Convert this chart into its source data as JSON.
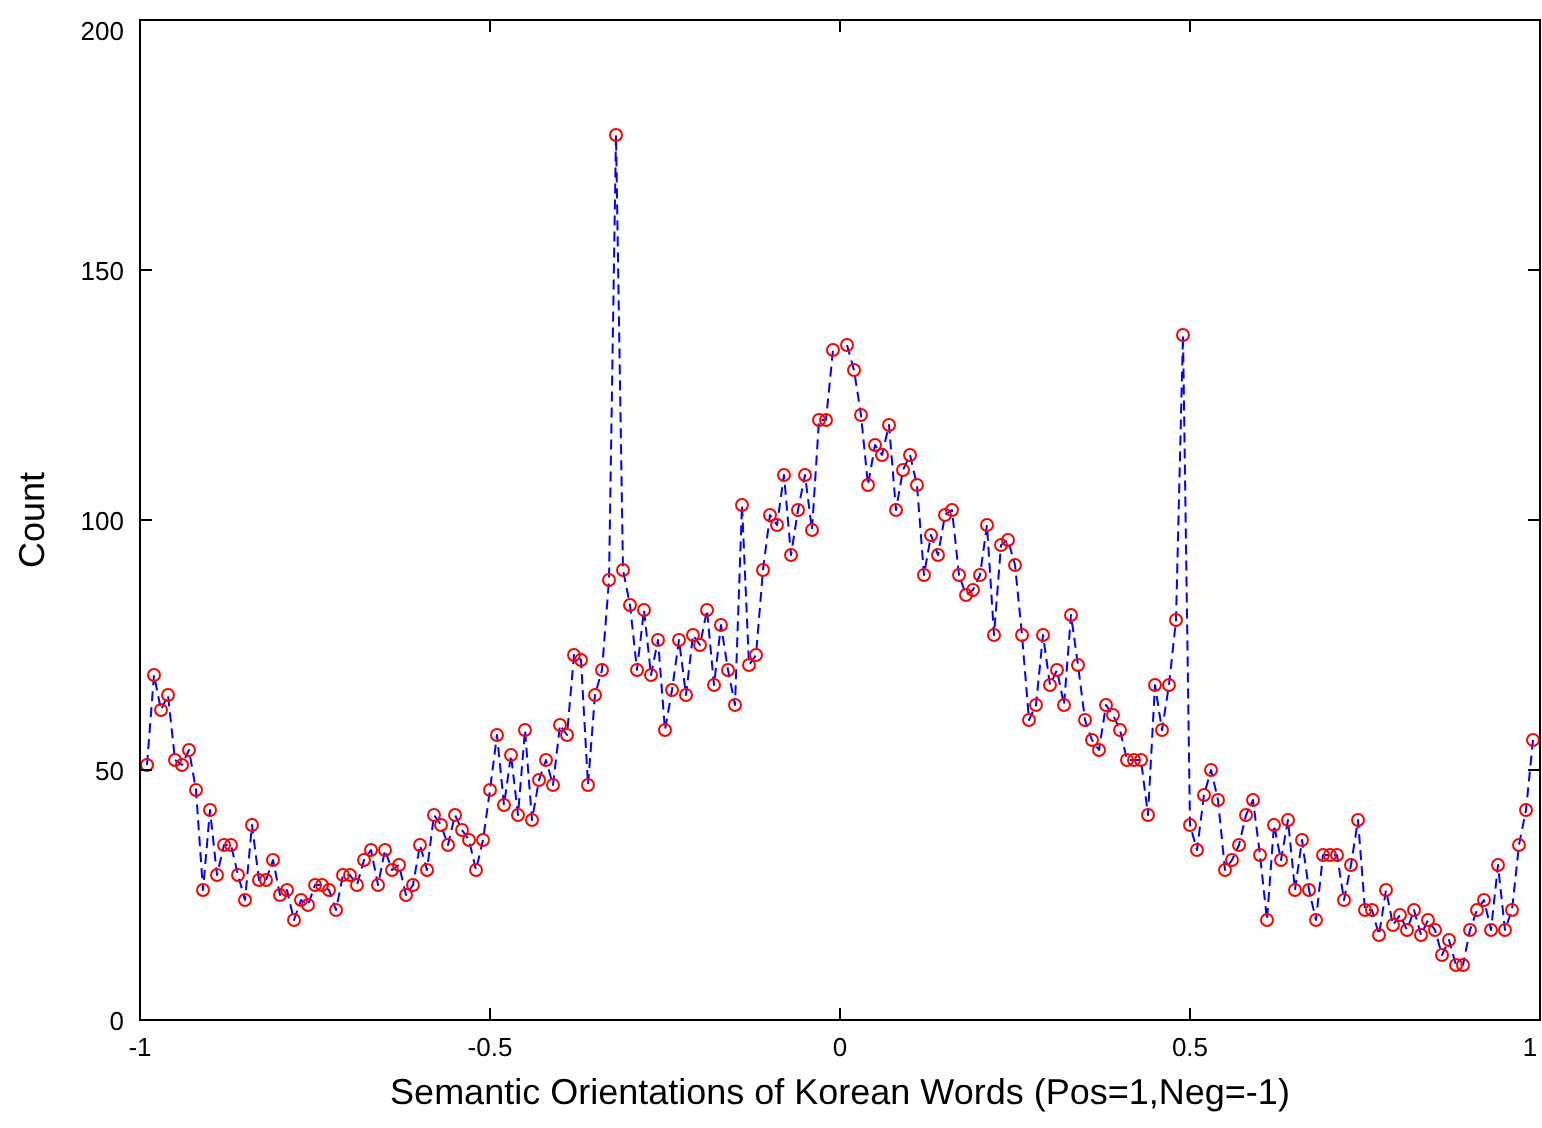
{
  "chart_data": {
    "type": "line",
    "xlabel": "Semantic Orientations of Korean Words (Pos=1,Neg=-1)",
    "ylabel": "Count",
    "xlim": [
      -1,
      1
    ],
    "xticks": [
      -1,
      {
        "value": -0.5,
        "label": "-0.5"
      },
      0,
      {
        "value": 0.5,
        "label": "0.5"
      },
      1
    ],
    "ylim": [
      0,
      200
    ],
    "yticks": [
      0,
      50,
      100,
      150,
      200
    ],
    "grid": false,
    "x": [
      -0.99,
      -0.98,
      -0.97,
      -0.96,
      -0.95,
      -0.94,
      -0.93,
      -0.92,
      -0.91,
      -0.9,
      -0.89,
      -0.88,
      -0.87,
      -0.86,
      -0.85,
      -0.84,
      -0.83,
      -0.82,
      -0.81,
      -0.8,
      -0.79,
      -0.78,
      -0.77,
      -0.76,
      -0.75,
      -0.74,
      -0.73,
      -0.72,
      -0.71,
      -0.7,
      -0.69,
      -0.68,
      -0.67,
      -0.66,
      -0.65,
      -0.64,
      -0.63,
      -0.62,
      -0.61,
      -0.6,
      -0.59,
      -0.58,
      -0.57,
      -0.56,
      -0.55,
      -0.54,
      -0.53,
      -0.52,
      -0.51,
      -0.5,
      -0.49,
      -0.48,
      -0.47,
      -0.46,
      -0.45,
      -0.44,
      -0.43,
      -0.42,
      -0.41,
      -0.4,
      -0.39,
      -0.38,
      -0.37,
      -0.36,
      -0.35,
      -0.34,
      -0.33,
      -0.32,
      -0.31,
      -0.3,
      -0.29,
      -0.28,
      -0.27,
      -0.26,
      -0.25,
      -0.24,
      -0.23,
      -0.22,
      -0.21,
      -0.2,
      -0.19,
      -0.18,
      -0.17,
      -0.16,
      -0.15,
      -0.14,
      -0.13,
      -0.12,
      -0.11,
      -0.1,
      -0.09,
      -0.08,
      -0.07,
      -0.06,
      -0.05,
      -0.04,
      -0.03,
      -0.02,
      -0.01,
      0,
      0.01,
      0.02,
      0.03,
      0.04,
      0.05,
      0.06,
      0.07,
      0.08,
      0.09,
      0.1,
      0.11,
      0.12,
      0.13,
      0.14,
      0.15,
      0.16,
      0.17,
      0.18,
      0.19,
      0.2,
      0.21,
      0.22,
      0.23,
      0.24,
      0.25,
      0.26,
      0.27,
      0.28,
      0.29,
      0.3,
      0.31,
      0.32,
      0.33,
      0.34,
      0.35,
      0.36,
      0.37,
      0.38,
      0.39,
      0.4,
      0.41,
      0.42,
      0.43,
      0.44,
      0.45,
      0.46,
      0.47,
      0.48,
      0.49,
      0.5,
      0.51,
      0.52,
      0.53,
      0.54,
      0.55,
      0.56,
      0.57,
      0.58,
      0.59,
      0.6,
      0.61,
      0.62,
      0.63,
      0.64,
      0.65,
      0.66,
      0.67,
      0.68,
      0.69,
      0.7,
      0.71,
      0.72,
      0.73,
      0.74,
      0.75,
      0.76,
      0.77,
      0.78,
      0.79,
      0.8,
      0.81,
      0.82,
      0.83,
      0.84,
      0.85,
      0.86,
      0.87,
      0.88,
      0.89,
      0.9,
      0.91,
      0.92,
      0.93,
      0.94,
      0.95,
      0.96,
      0.97,
      0.98,
      0.99
    ],
    "series": [
      {
        "color": "#0000ff",
        "line_style": "dashed",
        "marker": "none",
        "values": [
          51,
          69,
          62,
          65,
          52,
          51,
          54,
          46,
          26,
          42,
          29,
          35,
          35,
          29,
          24,
          39,
          28,
          28,
          32,
          25,
          26,
          20,
          24,
          23,
          27,
          27,
          26,
          22,
          29,
          29,
          27,
          32,
          34,
          27,
          34,
          30,
          31,
          25,
          27,
          35,
          30,
          41,
          39,
          35,
          41,
          38,
          36,
          30,
          36,
          46,
          57,
          43,
          53,
          41,
          58,
          40,
          48,
          52,
          47,
          59,
          57,
          73,
          72,
          47,
          65,
          70,
          88,
          177,
          90,
          83,
          70,
          82,
          69,
          76,
          58,
          66,
          76,
          65,
          77,
          75,
          82,
          67,
          79,
          70,
          63,
          103,
          71,
          73,
          90,
          101,
          99,
          109,
          93,
          102,
          109,
          98,
          120,
          120,
          134,
          null,
          135,
          130,
          121,
          107,
          115,
          113,
          119,
          102,
          110,
          113,
          107,
          89,
          97,
          93,
          101,
          102,
          89,
          85,
          86,
          89,
          99,
          77,
          95,
          96,
          91,
          77,
          60,
          63,
          77,
          67,
          70,
          63,
          81,
          71,
          60,
          56,
          54,
          63,
          61,
          58,
          52,
          52,
          52,
          41,
          67,
          58,
          67,
          80,
          137,
          39,
          34,
          45,
          50,
          44,
          30,
          32,
          35,
          41,
          44,
          33,
          20,
          39,
          32,
          40,
          26,
          36,
          26,
          20,
          33,
          33,
          33,
          24,
          31,
          40,
          22,
          22,
          17,
          26,
          19,
          21,
          18,
          22,
          17,
          20,
          18,
          13,
          16,
          11,
          11,
          18,
          22,
          24,
          18,
          31,
          18,
          22,
          35,
          42,
          56
        ]
      },
      {
        "type": "scatter",
        "color": "#ff0000",
        "marker": "circle",
        "values": [
          51,
          69,
          62,
          65,
          52,
          51,
          54,
          46,
          26,
          42,
          29,
          35,
          35,
          29,
          24,
          39,
          28,
          28,
          32,
          25,
          26,
          20,
          24,
          23,
          27,
          27,
          26,
          22,
          29,
          29,
          27,
          32,
          34,
          27,
          34,
          30,
          31,
          25,
          27,
          35,
          30,
          41,
          39,
          35,
          41,
          38,
          36,
          30,
          36,
          46,
          57,
          43,
          53,
          41,
          58,
          40,
          48,
          52,
          47,
          59,
          57,
          73,
          72,
          47,
          65,
          70,
          88,
          177,
          90,
          83,
          70,
          82,
          69,
          76,
          58,
          66,
          76,
          65,
          77,
          75,
          82,
          67,
          79,
          70,
          63,
          103,
          71,
          73,
          90,
          101,
          99,
          109,
          93,
          102,
          109,
          98,
          120,
          120,
          134,
          null,
          135,
          130,
          121,
          107,
          115,
          113,
          119,
          102,
          110,
          113,
          107,
          89,
          97,
          93,
          101,
          102,
          89,
          85,
          86,
          89,
          99,
          77,
          95,
          96,
          91,
          77,
          60,
          63,
          77,
          67,
          70,
          63,
          81,
          71,
          60,
          56,
          54,
          63,
          61,
          58,
          52,
          52,
          52,
          41,
          67,
          58,
          67,
          80,
          137,
          39,
          34,
          45,
          50,
          44,
          30,
          32,
          35,
          41,
          44,
          33,
          20,
          39,
          32,
          40,
          26,
          36,
          26,
          20,
          33,
          33,
          33,
          24,
          31,
          40,
          22,
          22,
          17,
          26,
          19,
          21,
          18,
          22,
          17,
          20,
          18,
          13,
          16,
          11,
          11,
          18,
          22,
          24,
          18,
          31,
          18,
          22,
          35,
          42,
          56
        ]
      }
    ]
  }
}
